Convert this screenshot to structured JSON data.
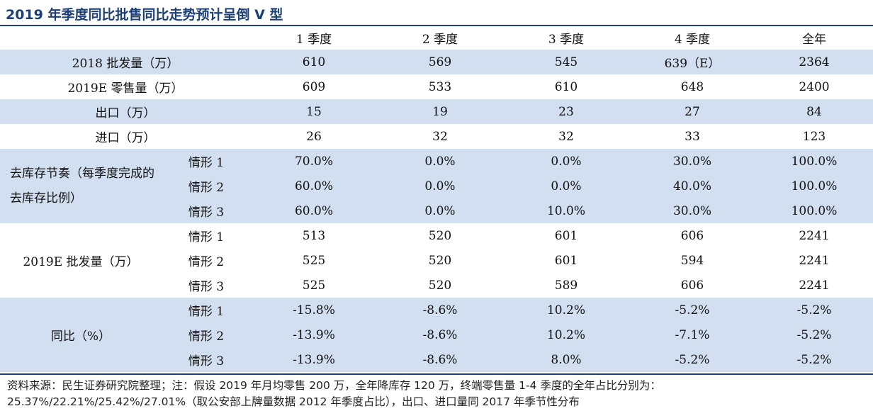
{
  "title": "2019 年季度同比批售同比走势预计呈倒 V 型",
  "header": [
    "1 季度",
    "2 季度",
    "3 季度",
    "4 季度",
    "全年"
  ],
  "rows_simple": [
    {
      "label": "2018 批发量（万）",
      "values": [
        "610",
        "569",
        "545",
        "639（E）",
        "2364"
      ]
    },
    {
      "label": "2019E 零售量（万）",
      "values": [
        "609",
        "533",
        "610",
        "648",
        "2400"
      ]
    },
    {
      "label": "出口（万）",
      "values": [
        "15",
        "19",
        "23",
        "27",
        "84"
      ]
    },
    {
      "label": "进口（万）",
      "values": [
        "26",
        "32",
        "32",
        "33",
        "123"
      ]
    }
  ],
  "groups": [
    {
      "label": "去库存节奏（每季度完成的去库存比例）",
      "rows": [
        {
          "scenario": "情形 1",
          "values": [
            "70.0%",
            "0.0%",
            "0.0%",
            "30.0%",
            "100.0%"
          ]
        },
        {
          "scenario": "情形 2",
          "values": [
            "60.0%",
            "0.0%",
            "0.0%",
            "40.0%",
            "100.0%"
          ]
        },
        {
          "scenario": "情形 3",
          "values": [
            "60.0%",
            "0.0%",
            "10.0%",
            "30.0%",
            "100.0%"
          ]
        }
      ]
    },
    {
      "label": "2019E 批发量（万）",
      "rows": [
        {
          "scenario": "情形 1",
          "values": [
            "513",
            "520",
            "601",
            "606",
            "2241"
          ]
        },
        {
          "scenario": "情形 2",
          "values": [
            "525",
            "520",
            "601",
            "594",
            "2241"
          ]
        },
        {
          "scenario": "情形 3",
          "values": [
            "525",
            "520",
            "589",
            "606",
            "2241"
          ]
        }
      ]
    },
    {
      "label": "同比（%）",
      "rows": [
        {
          "scenario": "情形 1",
          "values": [
            "-15.8%",
            "-8.6%",
            "10.2%",
            "-5.2%",
            "-5.2%"
          ]
        },
        {
          "scenario": "情形 2",
          "values": [
            "-13.9%",
            "-8.6%",
            "10.2%",
            "-7.1%",
            "-5.2%"
          ]
        },
        {
          "scenario": "情形 3",
          "values": [
            "-13.9%",
            "-8.6%",
            "8.0%",
            "-5.2%",
            "-5.2%"
          ]
        }
      ]
    }
  ],
  "note": {
    "line1": "资料来源：民生证券研究院整理；注：假设 2019 年月均零售 200 万，全年降库存 120 万，终端零售量 1-4 季度的全年占比分别为：",
    "line2": "25.37%/22.21%/25.42%/27.01%（取公安部上牌量数据 2012 年季度占比），出口、进口量同 2017 年季节性分布"
  },
  "colors": {
    "title": "#1c3f77",
    "band": "#d2dff0",
    "rule": "#1c3f77"
  }
}
